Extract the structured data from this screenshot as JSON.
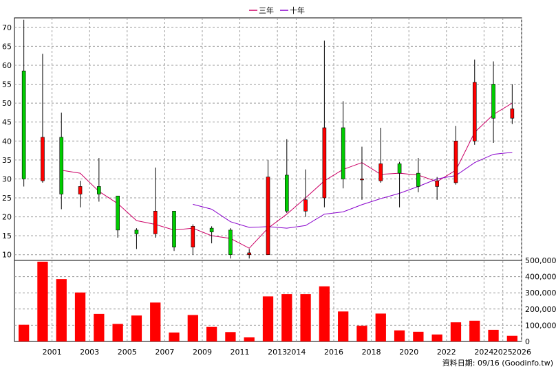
{
  "legend": {
    "ma3_label": "三年",
    "ma10_label": "十年",
    "ma3_color": "#cc0066",
    "ma10_color": "#8800cc"
  },
  "footer": {
    "source": "資料日期: 09/16  (Goodinfo.tw)"
  },
  "colors": {
    "up": "#ff0000",
    "down": "#00cc00",
    "volume": "#ff0000",
    "wick": "#000000"
  },
  "chart_data": {
    "type": "candlestick",
    "legend_position": "top-center",
    "grid": true,
    "price_axis": {
      "ticks": [
        10,
        15,
        20,
        25,
        30,
        35,
        40,
        45,
        50,
        55,
        60,
        65,
        70
      ],
      "range": [
        8.5,
        72.5
      ]
    },
    "volume_axis": {
      "tick_labels": [
        "0",
        "100,000",
        "200,000",
        "300,000",
        "400,000",
        "500,000"
      ],
      "ticks": [
        0,
        100000,
        200000,
        300000,
        400000,
        500000
      ],
      "range": [
        0,
        500000
      ]
    },
    "x_tick_labels": [
      "2001",
      "2003",
      "2005",
      "2007",
      "2009",
      "2011",
      "2013",
      "2014",
      "2016",
      "2018",
      "2020",
      "2022",
      "2024",
      "2025",
      "2026"
    ],
    "candles": [
      {
        "year": "2000",
        "open": 58.5,
        "close": 30.0,
        "high": 72.0,
        "low": 28.0
      },
      {
        "year": "2001",
        "open": 29.5,
        "close": 41.0,
        "high": 63.0,
        "low": 29.0
      },
      {
        "year": "2002",
        "open": 41.0,
        "close": 26.0,
        "high": 47.5,
        "low": 22.0
      },
      {
        "year": "2003",
        "open": 26.0,
        "close": 28.0,
        "high": 29.5,
        "low": 22.5
      },
      {
        "year": "2004",
        "open": 28.0,
        "close": 26.0,
        "high": 35.5,
        "low": 24.0
      },
      {
        "year": "2005",
        "open": 25.5,
        "close": 16.5,
        "high": 25.5,
        "low": 14.5
      },
      {
        "year": "2006",
        "open": 16.5,
        "close": 15.5,
        "high": 17.0,
        "low": 11.5
      },
      {
        "year": "2007",
        "open": 15.5,
        "close": 21.5,
        "high": 33.0,
        "low": 14.5
      },
      {
        "year": "2008",
        "open": 21.5,
        "close": 12.0,
        "high": 21.5,
        "low": 11.0
      },
      {
        "year": "2009",
        "open": 12.0,
        "close": 17.5,
        "high": 18.0,
        "low": 10.0
      },
      {
        "year": "2010",
        "open": 17.0,
        "close": 16.0,
        "high": 17.5,
        "low": 13.0
      },
      {
        "year": "2011",
        "open": 16.5,
        "close": 10.0,
        "high": 17.0,
        "low": 9.0
      },
      {
        "year": "2012",
        "open": 10.0,
        "close": 10.5,
        "high": 11.5,
        "low": 9.0
      },
      {
        "year": "2013",
        "open": 10.0,
        "close": 30.5,
        "high": 35.0,
        "low": 10.0
      },
      {
        "year": "2014",
        "open": 31.0,
        "close": 21.5,
        "high": 40.5,
        "low": 21.0
      },
      {
        "year": "2015",
        "open": 21.5,
        "close": 24.5,
        "high": 32.5,
        "low": 20.0
      },
      {
        "year": "2016",
        "open": 25.0,
        "close": 43.5,
        "high": 66.5,
        "low": 22.5
      },
      {
        "year": "2017",
        "open": 43.5,
        "close": 30.0,
        "high": 50.5,
        "low": 27.5
      },
      {
        "year": "2018",
        "open": 30.0,
        "close": 30.0,
        "high": 38.5,
        "low": 24.5
      },
      {
        "year": "2019",
        "open": 29.5,
        "close": 34.0,
        "high": 43.5,
        "low": 29.0
      },
      {
        "year": "2020",
        "open": 34.0,
        "close": 31.5,
        "high": 34.5,
        "low": 22.5
      },
      {
        "year": "2021",
        "open": 31.5,
        "close": 28.0,
        "high": 35.5,
        "low": 26.5
      },
      {
        "year": "2022",
        "open": 28.0,
        "close": 29.5,
        "high": 30.5,
        "low": 24.5
      },
      {
        "year": "2023",
        "open": 29.0,
        "close": 40.0,
        "high": 44.0,
        "low": 28.5
      },
      {
        "year": "2024",
        "open": 40.0,
        "close": 55.5,
        "high": 61.5,
        "low": 39.0
      },
      {
        "year": "2025",
        "open": 55.0,
        "close": 46.0,
        "high": 61.0,
        "low": 39.5
      },
      {
        "year": "2026",
        "open": 46.0,
        "close": 48.5,
        "high": 55.0,
        "low": 44.5
      }
    ],
    "volumes": [
      103000,
      492000,
      385000,
      302000,
      170000,
      108000,
      160000,
      240000,
      55000,
      163000,
      90000,
      58000,
      25000,
      278000,
      292000,
      292000,
      340000,
      185000,
      97000,
      172000,
      68000,
      60000,
      43000,
      118000,
      128000,
      72000,
      35000
    ],
    "ma3": [
      null,
      null,
      32.3,
      31.5,
      26.7,
      23.5,
      19.0,
      18.0,
      16.5,
      17.0,
      15.0,
      14.3,
      11.7,
      17.0,
      20.7,
      25.0,
      29.5,
      32.5,
      34.3,
      31.2,
      31.5,
      31.0,
      29.3,
      32.3,
      42.3,
      47.0,
      50.0
    ],
    "ma10": [
      null,
      null,
      null,
      null,
      null,
      null,
      null,
      null,
      null,
      23.3,
      22.0,
      18.7,
      17.2,
      17.4,
      17.0,
      17.7,
      20.7,
      21.3,
      23.2,
      24.8,
      26.2,
      28.0,
      30.0,
      30.9,
      34.3,
      36.5,
      37.0
    ]
  }
}
